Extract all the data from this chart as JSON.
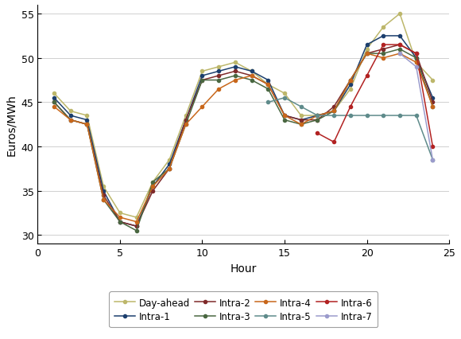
{
  "title": "",
  "xlabel": "Hour",
  "ylabel": "Euros/MWh",
  "xlim": [
    0,
    25
  ],
  "ylim": [
    29,
    56
  ],
  "yticks": [
    30,
    35,
    40,
    45,
    50,
    55
  ],
  "xticks": [
    0,
    5,
    10,
    15,
    20,
    25
  ],
  "series": {
    "Day-ahead": {
      "hours": [
        1,
        2,
        3,
        4,
        5,
        6,
        7,
        8,
        9,
        10,
        11,
        12,
        13,
        14,
        15,
        16,
        17,
        18,
        19,
        20,
        21,
        22,
        23,
        24
      ],
      "values": [
        46.0,
        44.0,
        43.5,
        35.5,
        32.5,
        32.0,
        36.0,
        38.5,
        43.5,
        48.5,
        49.0,
        49.5,
        48.5,
        47.0,
        46.0,
        43.5,
        43.5,
        44.0,
        46.5,
        51.0,
        53.5,
        55.0,
        49.5,
        47.5
      ],
      "color": "#bdb76b",
      "marker": "o",
      "markersize": 3,
      "linewidth": 1.1
    },
    "Intra-1": {
      "hours": [
        1,
        2,
        3,
        4,
        5,
        6,
        7,
        8,
        9,
        10,
        11,
        12,
        13,
        14,
        15,
        16,
        17,
        18,
        19,
        20,
        21,
        22,
        23,
        24
      ],
      "values": [
        45.5,
        43.5,
        43.0,
        35.0,
        31.5,
        31.0,
        35.5,
        38.0,
        43.0,
        48.0,
        48.5,
        49.0,
        48.5,
        47.5,
        43.5,
        43.0,
        43.5,
        44.0,
        47.0,
        51.5,
        52.5,
        52.5,
        50.0,
        45.5
      ],
      "color": "#1c3f6e",
      "marker": "o",
      "markersize": 3,
      "linewidth": 1.1
    },
    "Intra-2": {
      "hours": [
        1,
        2,
        3,
        4,
        5,
        6,
        7,
        8,
        9,
        10,
        11,
        12,
        13,
        14,
        15,
        16,
        17,
        18,
        19,
        20,
        21,
        22,
        23,
        24
      ],
      "values": [
        45.0,
        43.0,
        42.5,
        34.5,
        31.5,
        31.0,
        35.0,
        37.5,
        43.0,
        47.5,
        48.0,
        48.5,
        48.0,
        47.0,
        43.5,
        43.0,
        43.0,
        44.5,
        47.5,
        50.5,
        51.0,
        51.5,
        50.5,
        45.0
      ],
      "color": "#7f2a2a",
      "marker": "o",
      "markersize": 3,
      "linewidth": 1.1
    },
    "Intra-3": {
      "hours": [
        1,
        2,
        3,
        4,
        5,
        6,
        7,
        8,
        9,
        10,
        11,
        12,
        13,
        14,
        15,
        16,
        17,
        18,
        19,
        20,
        21,
        22,
        23,
        24
      ],
      "values": [
        45.0,
        43.0,
        42.5,
        34.0,
        31.5,
        30.5,
        36.0,
        37.5,
        42.5,
        47.5,
        47.5,
        48.0,
        47.5,
        46.5,
        43.0,
        42.5,
        43.0,
        44.0,
        47.5,
        50.5,
        50.5,
        51.0,
        50.0,
        44.5
      ],
      "color": "#4a6741",
      "marker": "o",
      "markersize": 3,
      "linewidth": 1.1
    },
    "Intra-4": {
      "hours": [
        1,
        2,
        3,
        4,
        5,
        6,
        7,
        8,
        9,
        10,
        11,
        12,
        13,
        14,
        15,
        16,
        17,
        18,
        19,
        20,
        21,
        22,
        23,
        24
      ],
      "values": [
        44.5,
        43.0,
        42.5,
        34.0,
        32.0,
        31.5,
        35.5,
        37.5,
        42.5,
        44.5,
        46.5,
        47.5,
        48.0,
        47.0,
        43.5,
        42.5,
        43.5,
        44.0,
        47.5,
        50.5,
        50.0,
        50.5,
        49.5,
        44.5
      ],
      "color": "#c8671b",
      "marker": "o",
      "markersize": 3,
      "linewidth": 1.1
    },
    "Intra-5": {
      "hours": [
        14,
        15,
        16,
        17,
        18,
        19,
        20,
        21,
        22,
        23,
        24
      ],
      "values": [
        45.0,
        45.5,
        44.5,
        43.5,
        43.5,
        43.5,
        43.5,
        43.5,
        43.5,
        43.5,
        38.5
      ],
      "color": "#5f8b8b",
      "marker": "o",
      "markersize": 3,
      "linewidth": 1.1
    },
    "Intra-6": {
      "hours": [
        17,
        18,
        19,
        20,
        21,
        22,
        23,
        24
      ],
      "values": [
        41.5,
        40.5,
        44.5,
        48.0,
        51.5,
        51.5,
        50.5,
        40.0
      ],
      "color": "#b22222",
      "marker": "o",
      "markersize": 3,
      "linewidth": 1.1
    },
    "Intra-7": {
      "hours": [
        22,
        23,
        24
      ],
      "values": [
        50.5,
        49.0,
        38.5
      ],
      "color": "#9b9bcc",
      "marker": "o",
      "markersize": 3,
      "linewidth": 1.1
    }
  },
  "legend_order": [
    "Day-ahead",
    "Intra-1",
    "Intra-2",
    "Intra-3",
    "Intra-4",
    "Intra-5",
    "Intra-6",
    "Intra-7"
  ],
  "background_color": "#ffffff",
  "grid_color": "#d0d0d0"
}
